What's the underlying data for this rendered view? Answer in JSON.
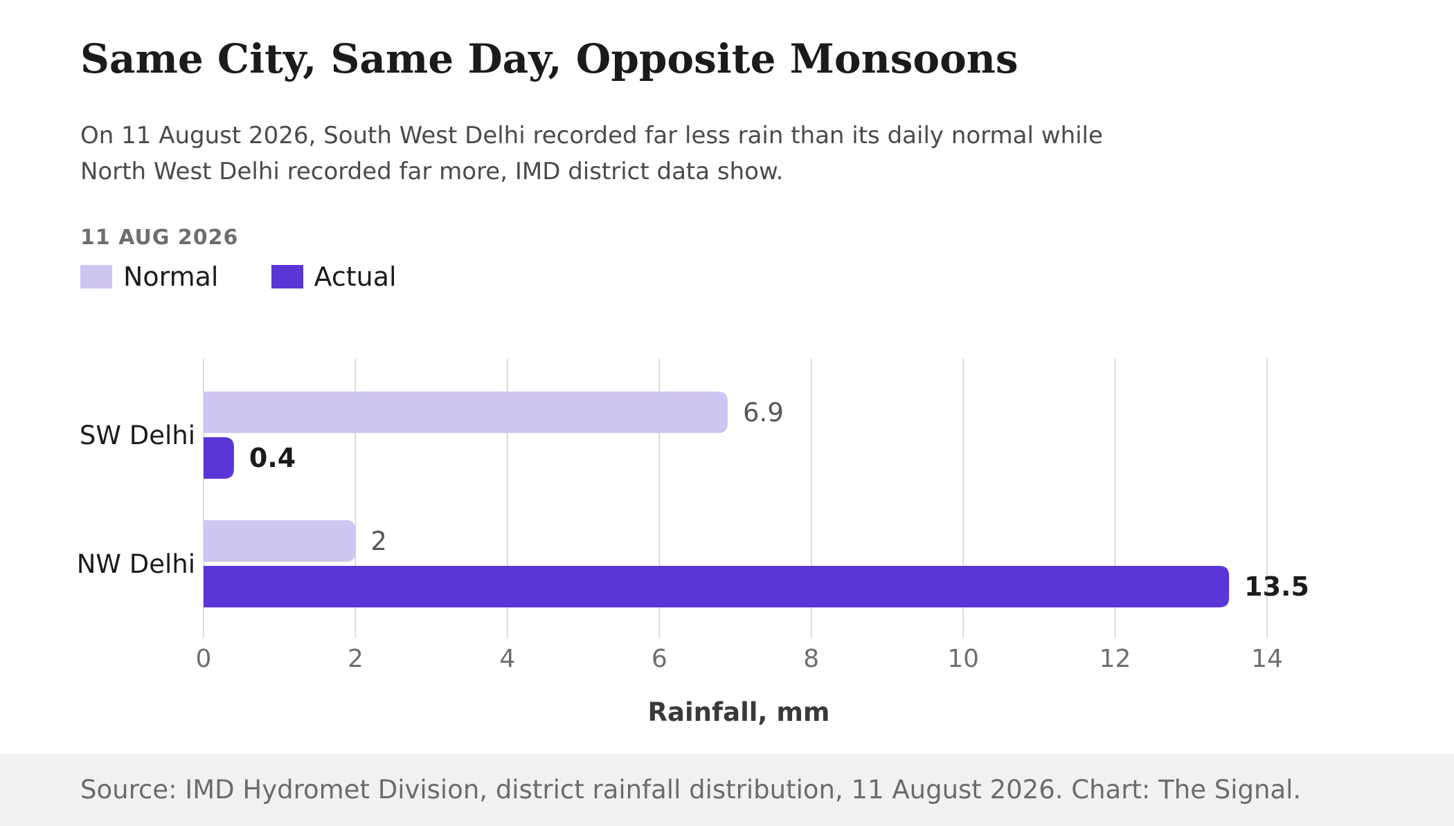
{
  "header": {
    "title": "Same City, Same Day, Opposite Monsoons",
    "subtitle": "On 11 August 2026, South West Delhi recorded far less rain than its daily normal while North West Delhi recorded far more, IMD district data show.",
    "date_label": "11 AUG 2026"
  },
  "legend": {
    "items": [
      {
        "label": "Normal",
        "color": "#cfc5f1"
      },
      {
        "label": "Actual",
        "color": "#5a36d6"
      }
    ]
  },
  "footer": {
    "source": "Source: IMD Hydromet Division, district rainfall distribution, 11 August 2026. Chart: The Signal."
  },
  "chart_data": {
    "type": "bar",
    "orientation": "horizontal",
    "categories": [
      "SW Delhi",
      "NW Delhi"
    ],
    "series": [
      {
        "name": "Normal",
        "values": [
          6.9,
          2
        ],
        "color": "#cfc5f1"
      },
      {
        "name": "Actual",
        "values": [
          0.4,
          13.5
        ],
        "color": "#5a36d6"
      }
    ],
    "xlabel": "Rainfall, mm",
    "ylabel": "",
    "xlim": [
      0,
      14
    ],
    "xticks": [
      0,
      2,
      4,
      6,
      8,
      10,
      12,
      14
    ],
    "value_labels": {
      "Normal": [
        "6.9",
        "2"
      ],
      "Actual": [
        "0.4",
        "13.5"
      ]
    },
    "grid": "vertical",
    "legend_position": "top-left"
  }
}
